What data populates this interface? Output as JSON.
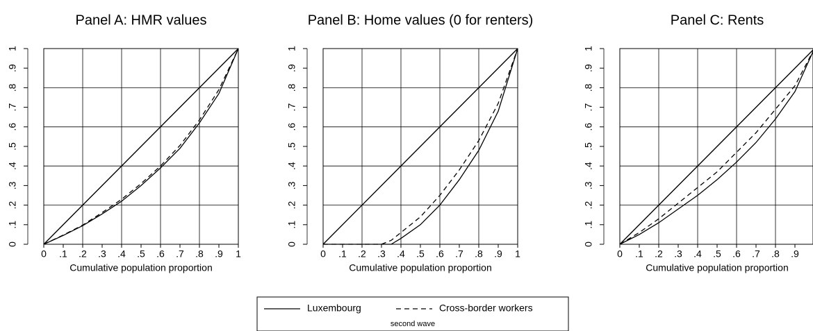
{
  "chart_data": [
    {
      "type": "line",
      "title": "Panel A: HMR values",
      "xlabel": "Cumulative population proportion",
      "x": [
        0,
        0.1,
        0.2,
        0.3,
        0.4,
        0.5,
        0.6,
        0.7,
        0.8,
        0.9,
        1
      ],
      "series": [
        {
          "name": "Luxembourg",
          "color": "#000000",
          "dash": "solid",
          "values": [
            0,
            0.045,
            0.095,
            0.155,
            0.22,
            0.3,
            0.39,
            0.49,
            0.62,
            0.77,
            1
          ]
        },
        {
          "name": "Cross-border workers",
          "color": "#000000",
          "dash": "dashed",
          "values": [
            0,
            0.047,
            0.098,
            0.162,
            0.23,
            0.31,
            0.4,
            0.505,
            0.635,
            0.79,
            1
          ]
        }
      ],
      "xlim": [
        0,
        1
      ],
      "ylim": [
        0,
        1
      ],
      "xticks": [
        0,
        {
          "value": 0.1,
          "label": ".1"
        },
        {
          "value": 0.2,
          "label": ".2"
        },
        {
          "value": 0.3,
          "label": ".3"
        },
        {
          "value": 0.4,
          "label": ".4"
        },
        {
          "value": 0.5,
          "label": ".5"
        },
        {
          "value": 0.6,
          "label": ".6"
        },
        {
          "value": 0.7,
          "label": ".7"
        },
        {
          "value": 0.8,
          "label": ".8"
        },
        {
          "value": 0.9,
          "label": ".9"
        },
        1
      ],
      "yticks": [
        0,
        {
          "value": 0.1,
          "label": ".1"
        },
        {
          "value": 0.2,
          "label": ".2"
        },
        {
          "value": 0.3,
          "label": ".3"
        },
        {
          "value": 0.4,
          "label": ".4"
        },
        {
          "value": 0.5,
          "label": ".5"
        },
        {
          "value": 0.6,
          "label": ".6"
        },
        {
          "value": 0.7,
          "label": ".7"
        },
        {
          "value": 0.8,
          "label": ".8"
        },
        {
          "value": 0.9,
          "label": ".9"
        },
        1
      ],
      "grid": true
    },
    {
      "type": "line",
      "title": "Panel B: Home values (0 for renters)",
      "xlabel": "Cumulative population proportion",
      "x": [
        0,
        0.1,
        0.2,
        0.3,
        0.35,
        0.4,
        0.5,
        0.6,
        0.7,
        0.8,
        0.9,
        1
      ],
      "series": [
        {
          "name": "Luxembourg",
          "color": "#000000",
          "dash": "solid",
          "values": [
            0,
            0,
            0,
            0,
            0,
            0.03,
            0.1,
            0.2,
            0.33,
            0.48,
            0.68,
            1
          ]
        },
        {
          "name": "Cross-border workers",
          "color": "#000000",
          "dash": "dashed",
          "values": [
            0,
            0,
            0,
            0,
            0.02,
            0.06,
            0.14,
            0.25,
            0.38,
            0.53,
            0.72,
            1
          ]
        }
      ],
      "xlim": [
        0,
        1
      ],
      "ylim": [
        0,
        1
      ],
      "xticks": [
        0,
        {
          "value": 0.1,
          "label": ".1"
        },
        {
          "value": 0.2,
          "label": ".2"
        },
        {
          "value": 0.3,
          "label": ".3"
        },
        {
          "value": 0.4,
          "label": ".4"
        },
        {
          "value": 0.5,
          "label": ".5"
        },
        {
          "value": 0.6,
          "label": ".6"
        },
        {
          "value": 0.7,
          "label": ".7"
        },
        {
          "value": 0.8,
          "label": ".8"
        },
        {
          "value": 0.9,
          "label": ".9"
        },
        1
      ],
      "yticks": [
        0,
        {
          "value": 0.1,
          "label": ".1"
        },
        {
          "value": 0.2,
          "label": ".2"
        },
        {
          "value": 0.3,
          "label": ".3"
        },
        {
          "value": 0.4,
          "label": ".4"
        },
        {
          "value": 0.5,
          "label": ".5"
        },
        {
          "value": 0.6,
          "label": ".6"
        },
        {
          "value": 0.7,
          "label": ".7"
        },
        {
          "value": 0.8,
          "label": ".8"
        },
        {
          "value": 0.9,
          "label": ".9"
        },
        1
      ],
      "grid": true
    },
    {
      "type": "line",
      "title": "Panel C: Rents",
      "xlabel": "Cumulative population proportion",
      "x": [
        0,
        0.1,
        0.2,
        0.3,
        0.4,
        0.5,
        0.6,
        0.7,
        0.8,
        0.9,
        1
      ],
      "series": [
        {
          "name": "Luxembourg",
          "color": "#000000",
          "dash": "solid",
          "values": [
            0,
            0.05,
            0.11,
            0.18,
            0.25,
            0.33,
            0.42,
            0.52,
            0.64,
            0.78,
            1
          ]
        },
        {
          "name": "Cross-border workers",
          "color": "#000000",
          "dash": "dashed",
          "values": [
            0,
            0.06,
            0.13,
            0.21,
            0.29,
            0.37,
            0.47,
            0.57,
            0.69,
            0.81,
            1
          ]
        }
      ],
      "xlim": [
        0,
        1
      ],
      "ylim": [
        0,
        1
      ],
      "xticks": [
        0,
        {
          "value": 0.1,
          "label": ".1"
        },
        {
          "value": 0.2,
          "label": ".2"
        },
        {
          "value": 0.3,
          "label": ".3"
        },
        {
          "value": 0.4,
          "label": ".4"
        },
        {
          "value": 0.5,
          "label": ".5"
        },
        {
          "value": 0.6,
          "label": ".6"
        },
        {
          "value": 0.7,
          "label": ".7"
        },
        {
          "value": 0.8,
          "label": ".8"
        },
        {
          "value": 0.9,
          "label": ".9"
        }
      ],
      "yticks": [
        0,
        {
          "value": 0.1,
          "label": ".1"
        },
        {
          "value": 0.2,
          "label": ".2"
        },
        {
          "value": 0.3,
          "label": ".3"
        },
        {
          "value": 0.4,
          "label": ".4"
        },
        {
          "value": 0.5,
          "label": ".5"
        },
        {
          "value": 0.6,
          "label": ".6"
        },
        {
          "value": 0.7,
          "label": ".7"
        },
        {
          "value": 0.8,
          "label": ".8"
        },
        {
          "value": 0.9,
          "label": ".9"
        },
        1
      ],
      "grid": true
    }
  ],
  "legend_note": "second wave"
}
